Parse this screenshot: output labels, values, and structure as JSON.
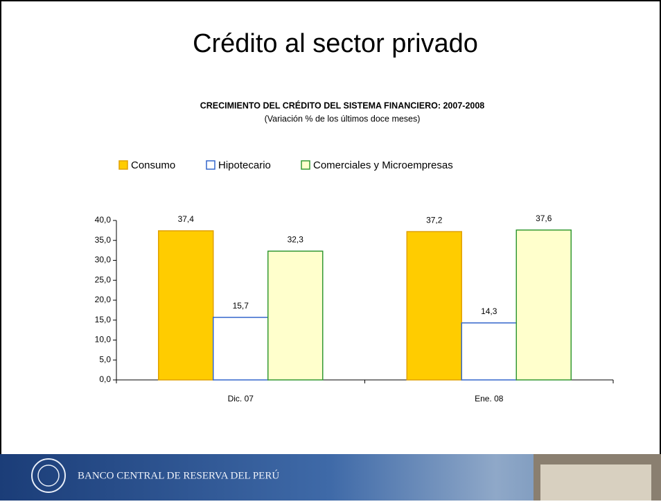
{
  "slide_title": "Crédito al sector privado",
  "footer": "BANCO CENTRAL DE RESERVA DEL PERÚ",
  "chart_data": {
    "type": "bar",
    "title": "CRECIMIENTO DEL CRÉDITO DEL SISTEMA FINANCIERO: 2007-2008",
    "subtitle": "(Variación % de los últimos doce meses)",
    "categories": [
      "Dic. 07",
      "Ene. 08"
    ],
    "series": [
      {
        "name": "Consumo",
        "color": "#e0a000",
        "fill": "#ffcc00",
        "values": [
          37.4,
          37.2
        ],
        "value_labels": [
          "37,4",
          "37,2"
        ]
      },
      {
        "name": "Hipotecario",
        "color": "#3366cc",
        "fill": "#ffffff",
        "values": [
          15.7,
          14.3
        ],
        "value_labels": [
          "15,7",
          "14,3"
        ]
      },
      {
        "name": "Comerciales y Microempresas",
        "color": "#339933",
        "fill": "#ffffcc",
        "values": [
          32.3,
          37.6
        ],
        "value_labels": [
          "32,3",
          "37,6"
        ]
      }
    ],
    "ylim": [
      0,
      40
    ],
    "yticks": [
      {
        "value": 0,
        "label": "0,0"
      },
      {
        "value": 5,
        "label": "5,0"
      },
      {
        "value": 10,
        "label": "10,0"
      },
      {
        "value": 15,
        "label": "15,0"
      },
      {
        "value": 20,
        "label": "20,0"
      },
      {
        "value": 25,
        "label": "25,0"
      },
      {
        "value": 30,
        "label": "30,0"
      },
      {
        "value": 35,
        "label": "35,0"
      },
      {
        "value": 40,
        "label": "40,0"
      }
    ],
    "legend": "top-left"
  }
}
